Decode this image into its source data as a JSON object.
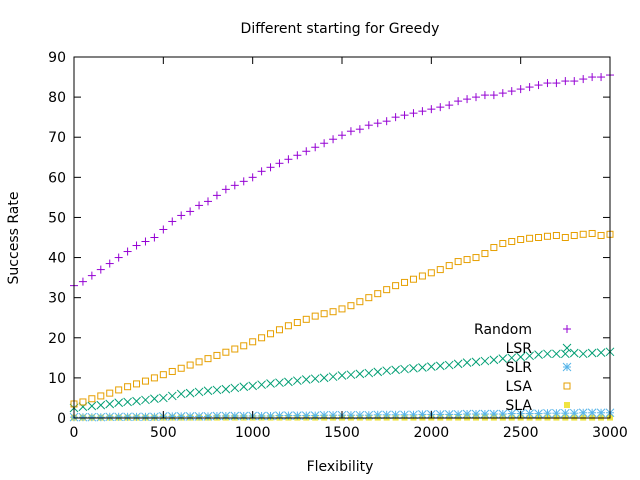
{
  "chart_data": {
    "type": "scatter",
    "title": "Different starting for Greedy",
    "xlabel": "Flexibility",
    "ylabel": "Success Rate",
    "xlim": [
      0,
      3000
    ],
    "ylim": [
      0,
      90
    ],
    "x_ticks": [
      0,
      500,
      1000,
      1500,
      2000,
      2500,
      3000
    ],
    "y_ticks": [
      0,
      10,
      20,
      30,
      40,
      50,
      60,
      70,
      80,
      90
    ],
    "grid": false,
    "legend_position": "bottom-right",
    "x": [
      0,
      50,
      100,
      150,
      200,
      250,
      300,
      350,
      400,
      450,
      500,
      550,
      600,
      650,
      700,
      750,
      800,
      850,
      900,
      950,
      1000,
      1050,
      1100,
      1150,
      1200,
      1250,
      1300,
      1350,
      1400,
      1450,
      1500,
      1550,
      1600,
      1650,
      1700,
      1750,
      1800,
      1850,
      1900,
      1950,
      2000,
      2050,
      2100,
      2150,
      2200,
      2250,
      2300,
      2350,
      2400,
      2450,
      2500,
      2550,
      2600,
      2650,
      2700,
      2750,
      2800,
      2850,
      2900,
      2950,
      3000
    ],
    "series": [
      {
        "name": "Random",
        "marker": "plus",
        "color": "#9400d3",
        "values": [
          33.0,
          34.0,
          35.5,
          37.0,
          38.5,
          40.0,
          41.5,
          43.0,
          44.0,
          45.0,
          47.0,
          49.0,
          50.5,
          51.5,
          53.0,
          54.0,
          55.5,
          57.0,
          58.0,
          59.0,
          60.0,
          61.5,
          62.5,
          63.5,
          64.5,
          65.5,
          66.5,
          67.5,
          68.5,
          69.5,
          70.5,
          71.5,
          72.0,
          73.0,
          73.5,
          74.0,
          75.0,
          75.5,
          76.0,
          76.5,
          77.0,
          77.5,
          78.0,
          79.0,
          79.5,
          80.0,
          80.5,
          80.5,
          81.0,
          81.5,
          82.0,
          82.5,
          83.0,
          83.5,
          83.5,
          84.0,
          84.0,
          84.5,
          85.0,
          85.0,
          85.5
        ]
      },
      {
        "name": "LSR",
        "marker": "cross",
        "color": "#009e73",
        "values": [
          2.5,
          2.8,
          3.0,
          3.2,
          3.5,
          3.8,
          4.0,
          4.2,
          4.5,
          4.8,
          5.0,
          5.5,
          6.0,
          6.2,
          6.5,
          6.8,
          7.0,
          7.2,
          7.5,
          7.8,
          8.0,
          8.3,
          8.6,
          8.8,
          9.0,
          9.3,
          9.6,
          9.8,
          10.0,
          10.3,
          10.6,
          10.8,
          11.0,
          11.2,
          11.5,
          11.8,
          12.0,
          12.2,
          12.4,
          12.6,
          12.8,
          13.0,
          13.2,
          13.5,
          13.8,
          14.0,
          14.2,
          14.5,
          14.8,
          15.0,
          15.2,
          15.5,
          15.8,
          16.0,
          16.0,
          16.0,
          16.2,
          16.0,
          16.2,
          16.3,
          16.5
        ]
      },
      {
        "name": "SLR",
        "marker": "star",
        "color": "#56b4e9",
        "values": [
          0.2,
          0.2,
          0.2,
          0.2,
          0.3,
          0.3,
          0.3,
          0.3,
          0.3,
          0.3,
          0.4,
          0.4,
          0.4,
          0.4,
          0.4,
          0.4,
          0.5,
          0.5,
          0.5,
          0.5,
          0.5,
          0.5,
          0.5,
          0.6,
          0.6,
          0.6,
          0.6,
          0.6,
          0.7,
          0.7,
          0.7,
          0.7,
          0.7,
          0.7,
          0.8,
          0.8,
          0.8,
          0.8,
          0.8,
          0.9,
          0.9,
          0.9,
          0.9,
          0.9,
          1.0,
          1.0,
          1.0,
          1.0,
          1.0,
          1.1,
          1.1,
          1.1,
          1.1,
          1.2,
          1.2,
          1.2,
          1.2,
          1.3,
          1.3,
          1.3,
          1.3
        ]
      },
      {
        "name": "LSA",
        "marker": "square-open",
        "color": "#e69f00",
        "values": [
          3.5,
          4.0,
          4.8,
          5.5,
          6.2,
          7.0,
          7.8,
          8.5,
          9.2,
          10.0,
          10.8,
          11.6,
          12.4,
          13.2,
          14.0,
          14.8,
          15.6,
          16.4,
          17.2,
          18.0,
          19.0,
          20.0,
          21.0,
          22.0,
          23.0,
          23.8,
          24.6,
          25.4,
          26.0,
          26.5,
          27.2,
          28.0,
          29.0,
          30.0,
          31.0,
          32.0,
          33.0,
          33.8,
          34.6,
          35.4,
          36.2,
          37.0,
          38.0,
          39.0,
          39.5,
          40.0,
          41.0,
          42.5,
          43.5,
          44.0,
          44.5,
          44.8,
          45.0,
          45.3,
          45.5,
          45.0,
          45.5,
          45.8,
          46.0,
          45.5,
          45.8
        ]
      },
      {
        "name": "SLA",
        "marker": "square-filled",
        "color": "#f0e442",
        "values": [
          0.1,
          0.1,
          0.1,
          0.1,
          0.1,
          0.1,
          0.1,
          0.1,
          0.1,
          0.1,
          0.1,
          0.1,
          0.1,
          0.1,
          0.1,
          0.1,
          0.1,
          0.1,
          0.1,
          0.1,
          0.1,
          0.1,
          0.1,
          0.1,
          0.1,
          0.1,
          0.1,
          0.1,
          0.1,
          0.1,
          0.1,
          0.1,
          0.1,
          0.1,
          0.1,
          0.1,
          0.1,
          0.1,
          0.1,
          0.1,
          0.1,
          0.1,
          0.1,
          0.1,
          0.1,
          0.1,
          0.1,
          0.1,
          0.1,
          0.1,
          0.1,
          0.1,
          0.1,
          0.1,
          0.1,
          0.1,
          0.1,
          0.1,
          0.1,
          0.1,
          0.1
        ]
      }
    ]
  }
}
